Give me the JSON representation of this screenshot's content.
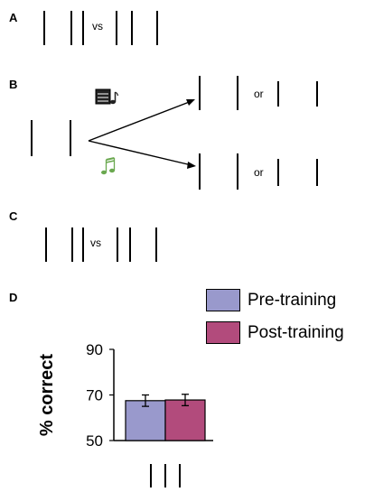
{
  "panels": {
    "a": {
      "label": "A",
      "vs": "vs"
    },
    "b": {
      "label": "B",
      "or_upper": "or",
      "or_lower": "or",
      "icon_top": "music-score-icon",
      "icon_bottom": "music-notes-icon",
      "icon_bottom_color": "#6aa84f"
    },
    "c": {
      "label": "C",
      "vs": "vs"
    },
    "d": {
      "label": "D"
    }
  },
  "chart_data": {
    "type": "bar",
    "categories": [
      "|||"
    ],
    "series": [
      {
        "name": "Pre-training",
        "values": [
          67.5
        ],
        "error": [
          2.5
        ],
        "color": "#9999cc"
      },
      {
        "name": "Post-training",
        "values": [
          67.8
        ],
        "error": [
          2.5
        ],
        "color": "#b24b7c"
      }
    ],
    "xlabel": "",
    "ylabel": "% correct",
    "ylim": [
      50,
      90
    ],
    "yticks": [
      "50",
      "70",
      "90"
    ],
    "grid": false,
    "legend": "top-right"
  }
}
